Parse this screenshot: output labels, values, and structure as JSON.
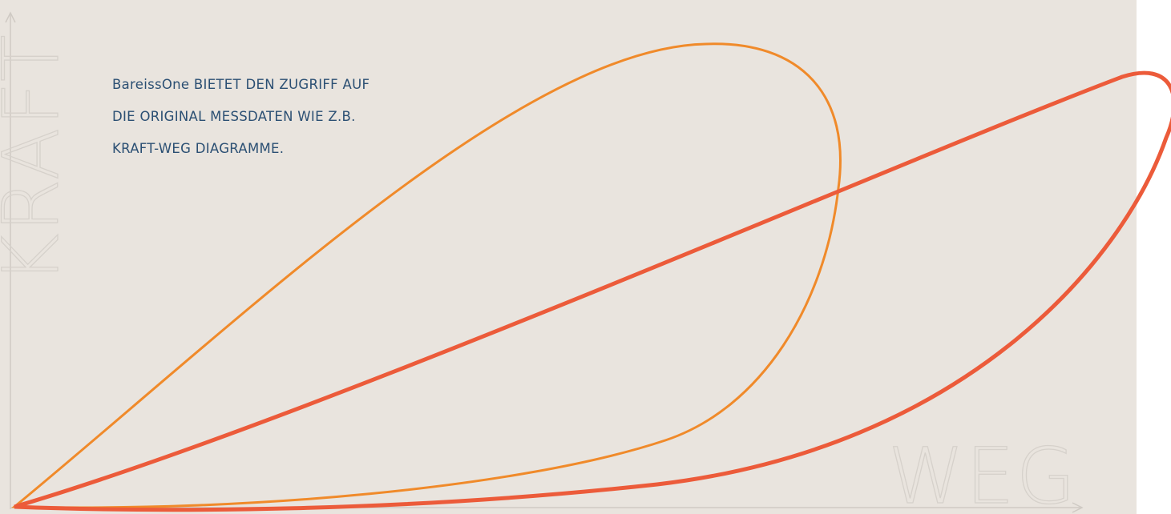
{
  "intro": {
    "lines": [
      "BareissOne BIETET DEN ZUGRIFF AUF",
      "DIE ORIGINAL MESSDATEN WIE Z.B.",
      "KRAFT-WEG DIAGRAMME."
    ]
  },
  "axes": {
    "y_label": "KRAFT",
    "x_label": "WEG"
  }
}
